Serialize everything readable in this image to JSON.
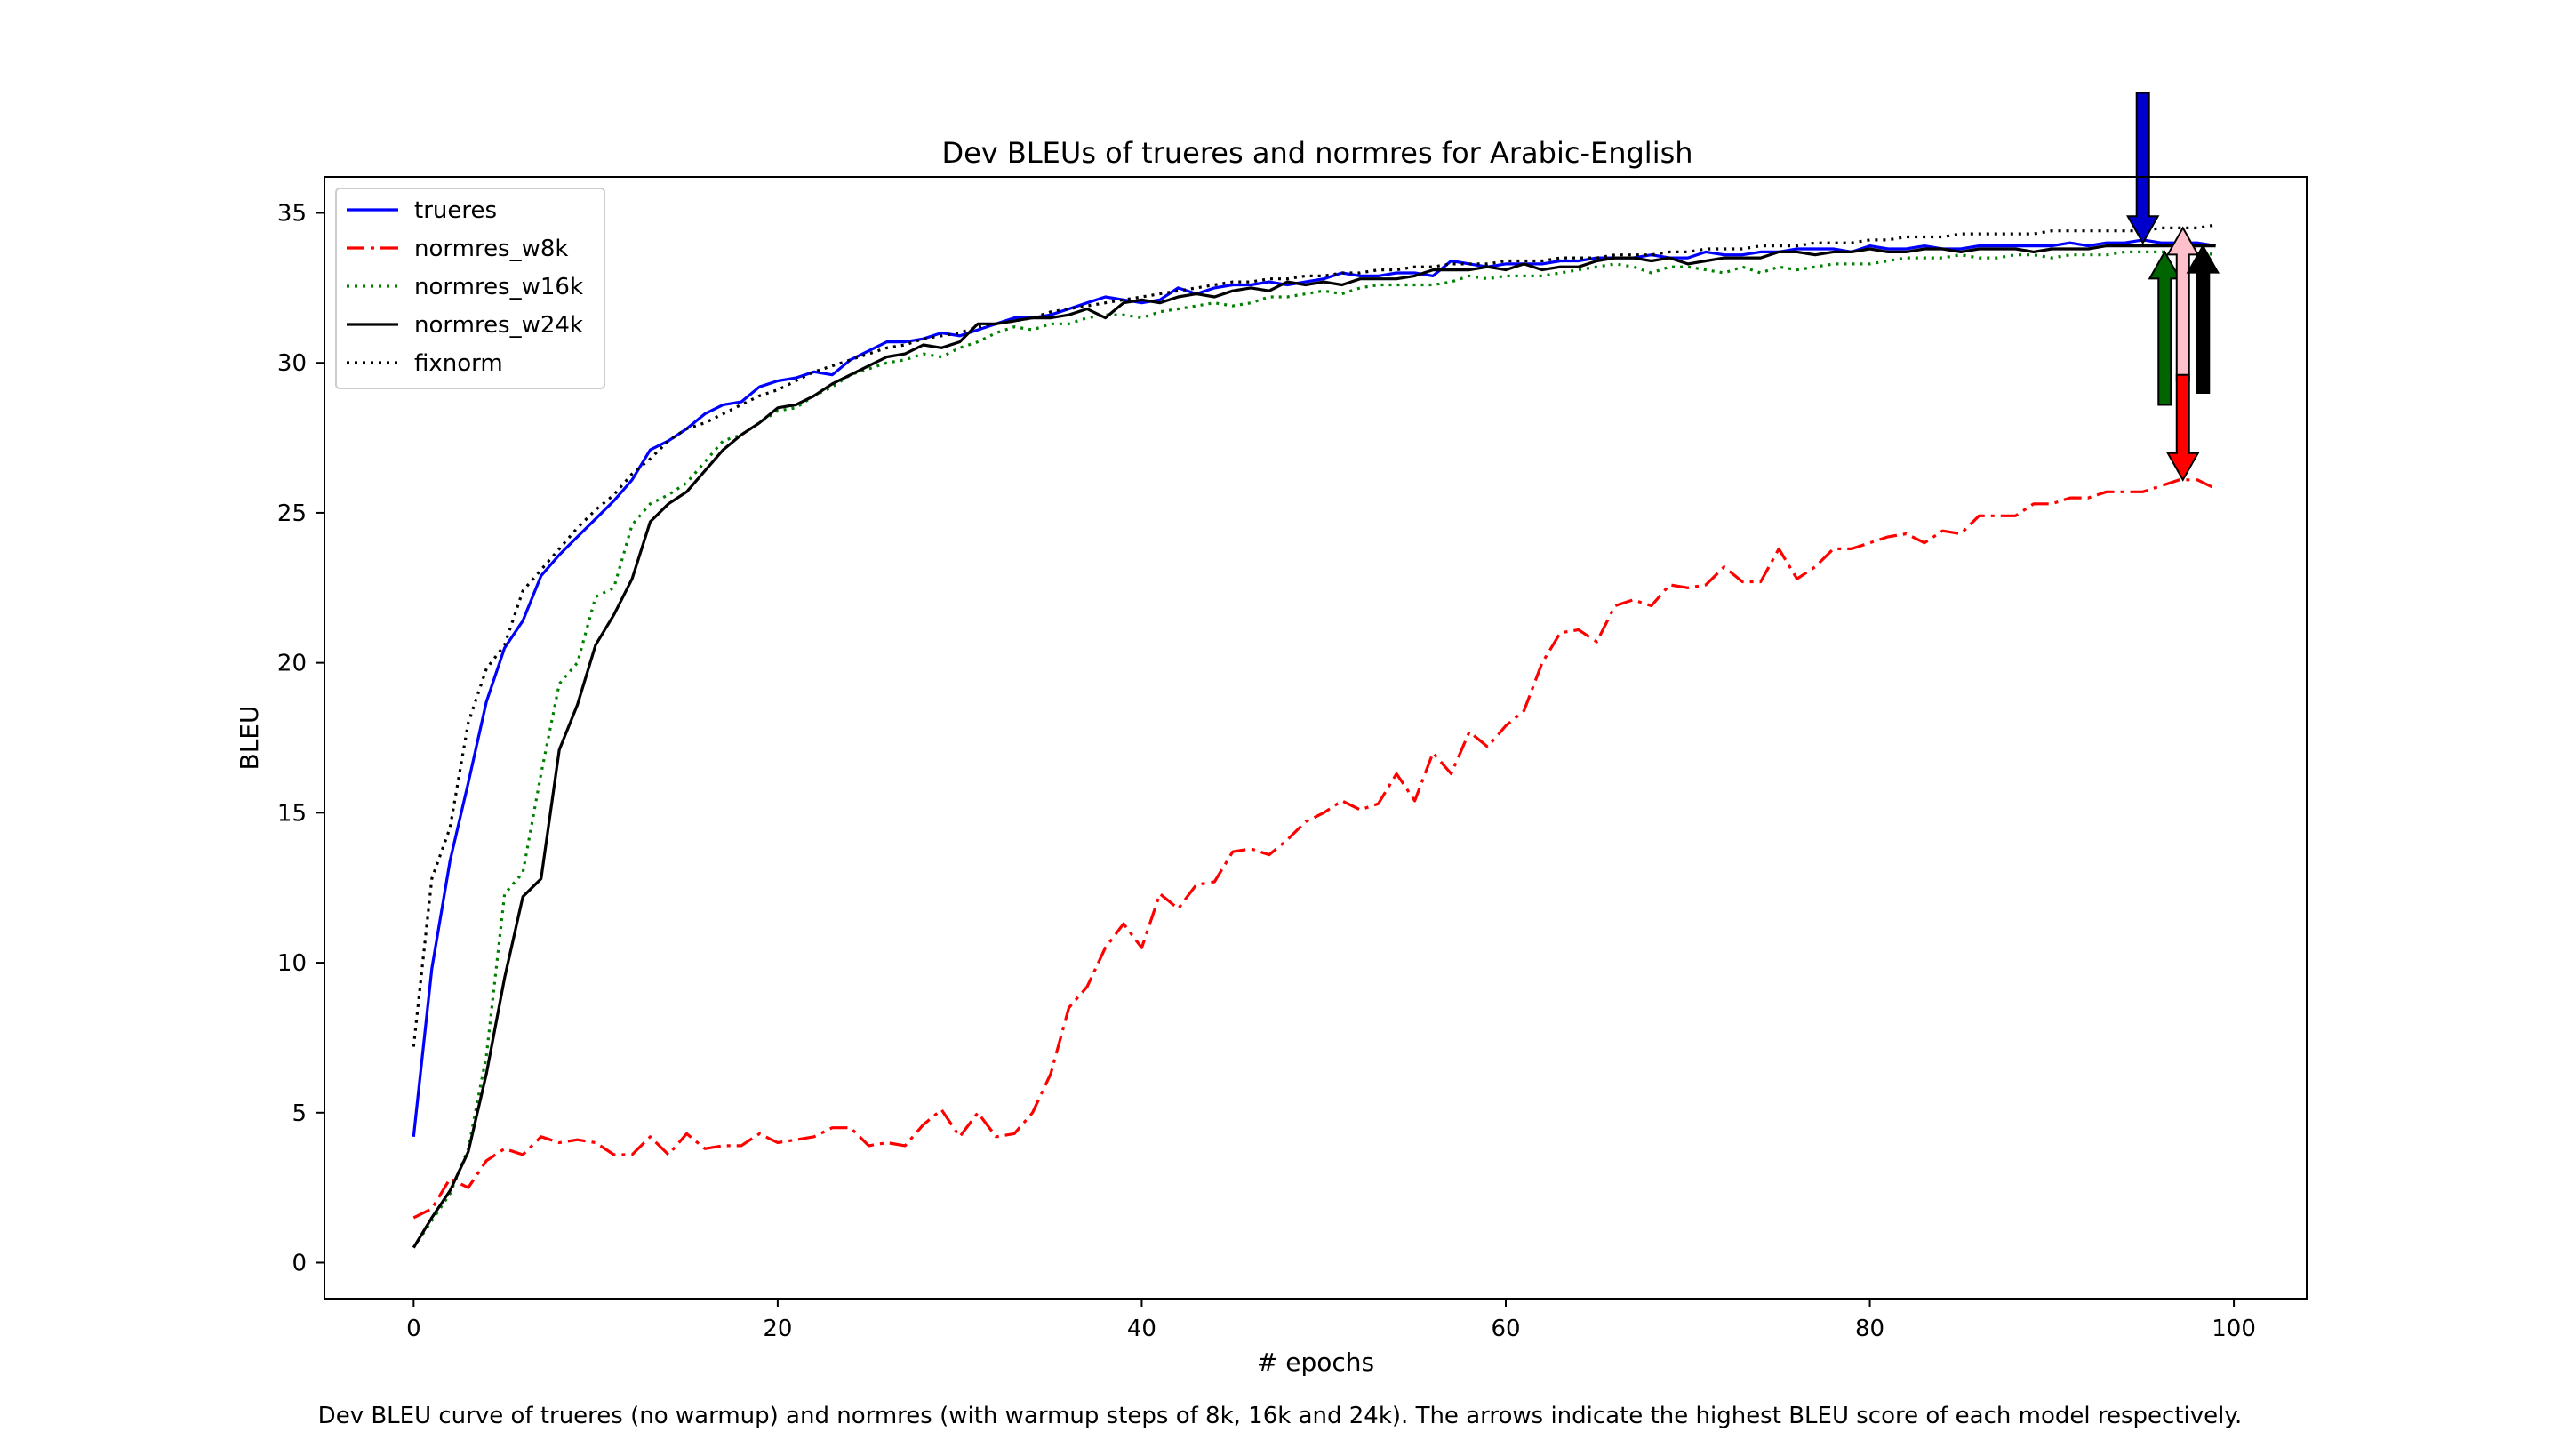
{
  "chart_data": {
    "type": "line",
    "title": "Dev BLEUs of trueres and normres for Arabic-English",
    "xlabel": "# epochs",
    "ylabel": "BLEU",
    "xlim": [
      -4.9,
      104
    ],
    "ylim": [
      -1.2,
      36.2
    ],
    "xticks": [
      0,
      20,
      40,
      60,
      80,
      100
    ],
    "yticks": [
      0,
      5,
      10,
      15,
      20,
      25,
      30,
      35
    ],
    "grid": false,
    "legend_location": "upper-left",
    "x": [
      0,
      1,
      2,
      3,
      4,
      5,
      6,
      7,
      8,
      9,
      10,
      11,
      12,
      13,
      14,
      15,
      16,
      17,
      18,
      19,
      20,
      21,
      22,
      23,
      24,
      25,
      26,
      27,
      28,
      29,
      30,
      31,
      32,
      33,
      34,
      35,
      36,
      37,
      38,
      39,
      40,
      41,
      42,
      43,
      44,
      45,
      46,
      47,
      48,
      49,
      50,
      51,
      52,
      53,
      54,
      55,
      56,
      57,
      58,
      59,
      60,
      61,
      62,
      63,
      64,
      65,
      66,
      67,
      68,
      69,
      70,
      71,
      72,
      73,
      74,
      75,
      76,
      77,
      78,
      79,
      80,
      81,
      82,
      83,
      84,
      85,
      86,
      87,
      88,
      89,
      90,
      91,
      92,
      93,
      94,
      95,
      96,
      97,
      98,
      99
    ],
    "series": [
      {
        "name": "trueres",
        "color": "#0000ff",
        "style": "solid",
        "values": [
          4.2,
          9.8,
          13.4,
          16.0,
          18.7,
          20.5,
          21.4,
          22.9,
          23.6,
          24.2,
          24.8,
          25.4,
          26.1,
          27.1,
          27.4,
          27.8,
          28.3,
          28.6,
          28.7,
          29.2,
          29.4,
          29.5,
          29.7,
          29.6,
          30.1,
          30.4,
          30.7,
          30.7,
          30.8,
          31.0,
          30.9,
          31.1,
          31.3,
          31.5,
          31.5,
          31.6,
          31.8,
          32.0,
          32.2,
          32.1,
          32.0,
          32.1,
          32.5,
          32.3,
          32.5,
          32.6,
          32.6,
          32.7,
          32.6,
          32.7,
          32.8,
          33.0,
          32.9,
          32.9,
          33.0,
          33.0,
          32.9,
          33.4,
          33.3,
          33.2,
          33.3,
          33.3,
          33.3,
          33.4,
          33.4,
          33.5,
          33.5,
          33.5,
          33.6,
          33.5,
          33.5,
          33.7,
          33.6,
          33.6,
          33.7,
          33.7,
          33.8,
          33.8,
          33.8,
          33.7,
          33.9,
          33.8,
          33.8,
          33.9,
          33.8,
          33.8,
          33.9,
          33.9,
          33.9,
          33.9,
          33.9,
          34.0,
          33.9,
          34.0,
          34.0,
          34.1,
          34.0,
          34.0,
          34.0,
          33.9
        ]
      },
      {
        "name": "normres_w8k",
        "color": "#ff0000",
        "style": "dashdot",
        "values": [
          1.5,
          1.8,
          2.8,
          2.5,
          3.4,
          3.8,
          3.6,
          4.2,
          4.0,
          4.1,
          4.0,
          3.6,
          3.6,
          4.2,
          3.6,
          4.3,
          3.8,
          3.9,
          3.9,
          4.3,
          4.0,
          4.1,
          4.2,
          4.5,
          4.5,
          3.9,
          4.0,
          3.9,
          4.6,
          5.1,
          4.2,
          5.0,
          4.2,
          4.3,
          5.0,
          6.3,
          8.5,
          9.2,
          10.5,
          11.3,
          10.5,
          12.3,
          11.8,
          12.6,
          12.7,
          13.7,
          13.8,
          13.6,
          14.1,
          14.7,
          15.0,
          15.4,
          15.1,
          15.3,
          16.3,
          15.4,
          17.0,
          16.3,
          17.7,
          17.2,
          17.9,
          18.4,
          20.0,
          21.0,
          21.1,
          20.7,
          21.9,
          22.1,
          21.9,
          22.6,
          22.5,
          22.6,
          23.2,
          22.7,
          22.7,
          23.8,
          22.8,
          23.2,
          23.8,
          23.8,
          24.0,
          24.2,
          24.3,
          24.0,
          24.4,
          24.3,
          24.9,
          24.9,
          24.9,
          25.3,
          25.3,
          25.5,
          25.5,
          25.7,
          25.7,
          25.7,
          25.9,
          26.1,
          26.1,
          25.8
        ]
      },
      {
        "name": "normres_w16k",
        "color": "#008000",
        "style": "dotted",
        "values": [
          0.5,
          1.4,
          2.3,
          3.8,
          6.9,
          12.3,
          13.0,
          16.3,
          19.3,
          20.0,
          22.2,
          22.5,
          24.6,
          25.3,
          25.6,
          26.0,
          26.7,
          27.4,
          27.6,
          28.0,
          28.4,
          28.5,
          28.9,
          29.2,
          29.6,
          29.8,
          30.0,
          30.1,
          30.3,
          30.2,
          30.5,
          30.7,
          31.0,
          31.2,
          31.1,
          31.3,
          31.3,
          31.5,
          31.6,
          31.6,
          31.5,
          31.7,
          31.8,
          31.9,
          32.0,
          31.9,
          32.0,
          32.2,
          32.2,
          32.3,
          32.4,
          32.3,
          32.5,
          32.6,
          32.6,
          32.6,
          32.6,
          32.7,
          32.9,
          32.8,
          32.9,
          32.9,
          32.9,
          33.0,
          33.1,
          33.2,
          33.3,
          33.2,
          33.0,
          33.2,
          33.2,
          33.1,
          33.0,
          33.2,
          33.0,
          33.2,
          33.1,
          33.2,
          33.3,
          33.3,
          33.3,
          33.4,
          33.5,
          33.5,
          33.5,
          33.6,
          33.5,
          33.5,
          33.6,
          33.6,
          33.5,
          33.6,
          33.6,
          33.6,
          33.7,
          33.7,
          33.7,
          33.7,
          33.7,
          33.6
        ]
      },
      {
        "name": "normres_w24k",
        "color": "#000000",
        "style": "solid",
        "values": [
          0.5,
          1.5,
          2.4,
          3.7,
          6.3,
          9.5,
          12.2,
          12.8,
          17.1,
          18.6,
          20.6,
          21.6,
          22.8,
          24.7,
          25.3,
          25.7,
          26.4,
          27.1,
          27.6,
          28.0,
          28.5,
          28.6,
          28.9,
          29.3,
          29.6,
          29.9,
          30.2,
          30.3,
          30.6,
          30.5,
          30.7,
          31.3,
          31.3,
          31.4,
          31.5,
          31.5,
          31.6,
          31.8,
          31.5,
          32.0,
          32.1,
          32.0,
          32.2,
          32.3,
          32.2,
          32.4,
          32.5,
          32.4,
          32.7,
          32.6,
          32.7,
          32.6,
          32.8,
          32.8,
          32.8,
          32.9,
          33.1,
          33.1,
          33.1,
          33.2,
          33.1,
          33.3,
          33.1,
          33.2,
          33.2,
          33.4,
          33.5,
          33.5,
          33.4,
          33.5,
          33.3,
          33.4,
          33.5,
          33.5,
          33.5,
          33.7,
          33.7,
          33.6,
          33.7,
          33.7,
          33.8,
          33.7,
          33.7,
          33.8,
          33.8,
          33.7,
          33.8,
          33.8,
          33.8,
          33.7,
          33.8,
          33.8,
          33.8,
          33.9,
          33.9,
          33.9,
          33.9,
          33.9,
          33.9,
          33.9
        ]
      },
      {
        "name": "fixnorm",
        "color": "#000000",
        "style": "dotted",
        "values": [
          7.2,
          12.8,
          14.5,
          18.0,
          19.8,
          20.6,
          22.4,
          23.1,
          23.8,
          24.5,
          25.1,
          25.6,
          26.3,
          26.8,
          27.4,
          27.8,
          28.0,
          28.3,
          28.6,
          28.9,
          29.1,
          29.4,
          29.7,
          29.9,
          30.1,
          30.3,
          30.5,
          30.6,
          30.8,
          30.9,
          31.0,
          31.2,
          31.3,
          31.4,
          31.5,
          31.7,
          31.8,
          31.9,
          32.0,
          32.1,
          32.2,
          32.3,
          32.4,
          32.5,
          32.6,
          32.7,
          32.7,
          32.8,
          32.8,
          32.9,
          32.9,
          33.0,
          33.0,
          33.1,
          33.1,
          33.2,
          33.2,
          33.3,
          33.3,
          33.3,
          33.4,
          33.4,
          33.4,
          33.5,
          33.5,
          33.5,
          33.6,
          33.6,
          33.6,
          33.7,
          33.7,
          33.8,
          33.8,
          33.8,
          33.9,
          33.9,
          33.9,
          34.0,
          34.0,
          34.0,
          34.1,
          34.1,
          34.2,
          34.2,
          34.2,
          34.3,
          34.3,
          34.3,
          34.3,
          34.3,
          34.4,
          34.4,
          34.4,
          34.4,
          34.4,
          34.4,
          34.5,
          34.5,
          34.5,
          34.6
        ]
      }
    ],
    "annotations": [
      {
        "series": "trueres",
        "type": "arrow",
        "direction": "down",
        "x": 95,
        "y_tip": 34.0,
        "y_tail": 39.0,
        "color": "#0000cc"
      },
      {
        "series": "normres_w16k",
        "type": "arrow",
        "direction": "up",
        "x": 96.2,
        "y_tip": 33.7,
        "y_tail": 28.6,
        "color": "#006400"
      },
      {
        "series": "fixnorm",
        "type": "arrow",
        "direction": "up",
        "x": 97.2,
        "y_tip": 34.5,
        "y_tail": 29.4,
        "color": "#ffc0cb"
      },
      {
        "series": "normres_w8k",
        "type": "arrow",
        "direction": "down",
        "x": 97.2,
        "y_tip": 26.1,
        "y_tail": 29.6,
        "color": "#ff0000"
      },
      {
        "series": "normres_w24k",
        "type": "arrow",
        "direction": "up",
        "x": 98.3,
        "y_tip": 33.9,
        "y_tail": 29.0,
        "color": "#000000"
      }
    ]
  },
  "caption": "Dev BLEU curve of trueres (no warmup) and normres (with warmup steps of 8k, 16k and 24k). The arrows indicate the highest BLEU score of each model respectively."
}
